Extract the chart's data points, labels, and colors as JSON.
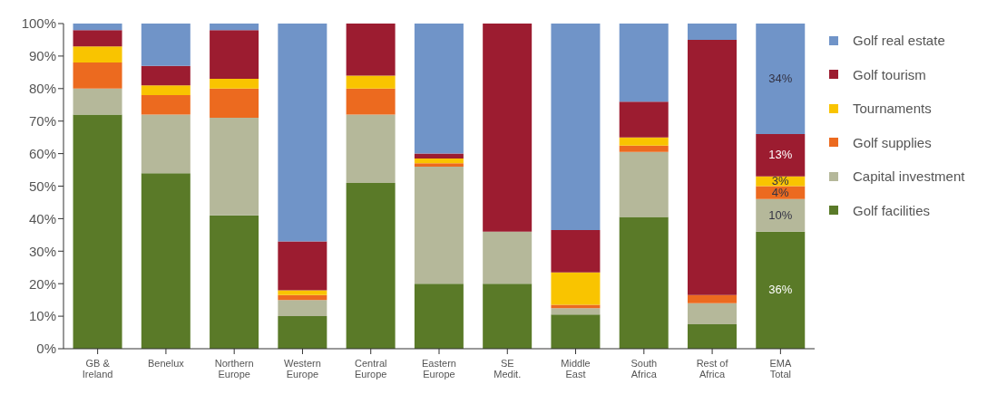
{
  "chart_data": {
    "type": "bar",
    "stacked": true,
    "categories": [
      "GB & Ireland",
      "Benelux",
      "Northern Europe",
      "Western Europe",
      "Central Europe",
      "Eastern Europe",
      "SE Medit.",
      "Middle East",
      "South Africa",
      "Rest of Africa",
      "EMA Total"
    ],
    "series": [
      {
        "name": "Golf facilities",
        "color": "#5a7a28",
        "values": [
          72,
          54,
          41,
          10,
          51,
          20,
          20,
          10.5,
          40.5,
          7.5,
          36
        ],
        "value_labels": [
          null,
          null,
          null,
          null,
          null,
          null,
          null,
          null,
          null,
          null,
          "36%"
        ]
      },
      {
        "name": "Capital investment",
        "color": "#b5b89a",
        "values": [
          8,
          18,
          30,
          5,
          21,
          36,
          16,
          2,
          20,
          6.5,
          10
        ],
        "value_labels": [
          null,
          null,
          null,
          null,
          null,
          null,
          null,
          null,
          null,
          null,
          "10%"
        ]
      },
      {
        "name": "Golf supplies",
        "color": "#ec6a1f",
        "values": [
          8,
          6,
          9,
          1.5,
          8,
          1,
          0,
          1,
          2,
          2.5,
          4
        ],
        "value_labels": [
          null,
          null,
          null,
          null,
          null,
          null,
          null,
          null,
          null,
          null,
          "4%"
        ]
      },
      {
        "name": "Tournaments",
        "color": "#f9c400",
        "values": [
          5,
          3,
          3,
          1.5,
          4,
          1.5,
          0,
          10,
          2.5,
          0,
          3
        ],
        "value_labels": [
          null,
          null,
          null,
          null,
          null,
          null,
          null,
          null,
          null,
          null,
          "3%"
        ]
      },
      {
        "name": "Golf tourism",
        "color": "#9c1c30",
        "values": [
          5,
          6,
          15,
          15,
          16,
          1.5,
          64,
          13,
          11,
          78.5,
          13
        ],
        "value_labels": [
          null,
          null,
          null,
          null,
          null,
          null,
          null,
          null,
          null,
          null,
          "13%"
        ]
      },
      {
        "name": "Golf real estate",
        "color": "#7094c8",
        "values": [
          2,
          13,
          2,
          67,
          0,
          40,
          0,
          63.5,
          24,
          5,
          34
        ],
        "value_labels": [
          null,
          null,
          null,
          null,
          null,
          null,
          null,
          null,
          null,
          null,
          "34%"
        ]
      }
    ],
    "ylim": [
      0,
      100
    ],
    "yticks": [
      {
        "value": 0,
        "label": "0%"
      },
      {
        "value": 10,
        "label": "10%"
      },
      {
        "value": 20,
        "label": "20%"
      },
      {
        "value": 30,
        "label": "30%"
      },
      {
        "value": 40,
        "label": "40%"
      },
      {
        "value": 50,
        "label": "50%"
      },
      {
        "value": 60,
        "label": "60%"
      },
      {
        "value": 70,
        "label": "70%"
      },
      {
        "value": 80,
        "label": "80%"
      },
      {
        "value": 90,
        "label": "90%"
      },
      {
        "value": 100,
        "label": "100%"
      }
    ],
    "grid": false,
    "legend": "top right"
  }
}
